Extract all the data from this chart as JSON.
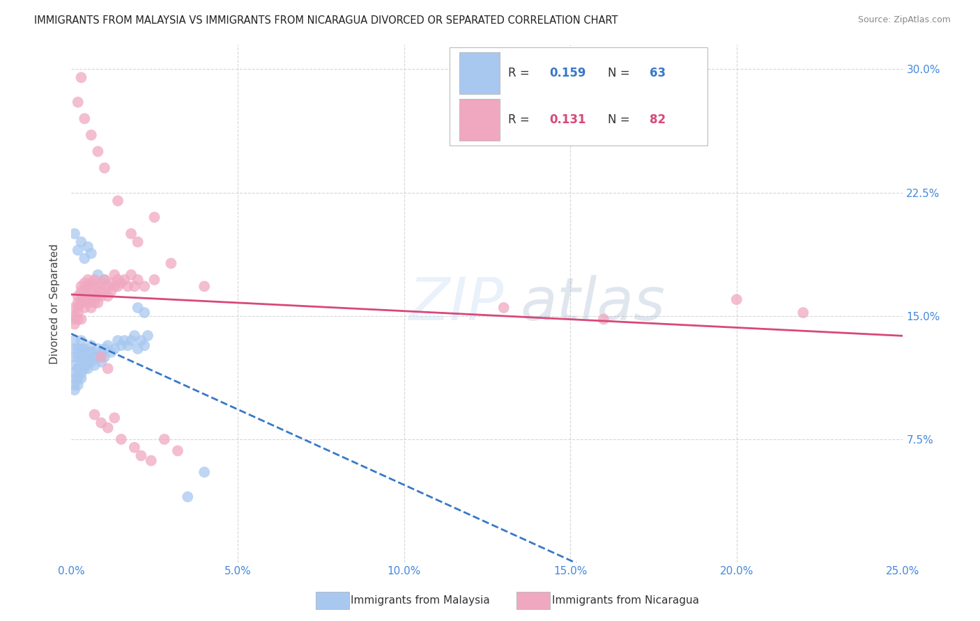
{
  "title": "IMMIGRANTS FROM MALAYSIA VS IMMIGRANTS FROM NICARAGUA DIVORCED OR SEPARATED CORRELATION CHART",
  "source": "Source: ZipAtlas.com",
  "xlim": [
    0.0,
    0.25
  ],
  "ylim": [
    0.0,
    0.315
  ],
  "ylabel": "Divorced or Separated",
  "malaysia_color": "#a8c8f0",
  "nicaragua_color": "#f0a8c0",
  "malaysia_line_color": "#3878c8",
  "nicaragua_line_color": "#d84878",
  "malaysia_R": 0.159,
  "malaysia_N": 63,
  "nicaragua_R": 0.131,
  "nicaragua_N": 82,
  "malaysia_x": [
    0.001,
    0.001,
    0.001,
    0.001,
    0.001,
    0.001,
    0.001,
    0.001,
    0.002,
    0.002,
    0.002,
    0.002,
    0.002,
    0.002,
    0.003,
    0.003,
    0.003,
    0.003,
    0.003,
    0.003,
    0.004,
    0.004,
    0.004,
    0.004,
    0.005,
    0.005,
    0.005,
    0.006,
    0.006,
    0.006,
    0.007,
    0.007,
    0.008,
    0.008,
    0.009,
    0.009,
    0.01,
    0.01,
    0.011,
    0.012,
    0.013,
    0.014,
    0.015,
    0.016,
    0.017,
    0.018,
    0.019,
    0.02,
    0.021,
    0.022,
    0.023,
    0.001,
    0.002,
    0.003,
    0.004,
    0.005,
    0.006,
    0.008,
    0.01,
    0.02,
    0.022,
    0.035,
    0.04
  ],
  "malaysia_y": [
    0.12,
    0.125,
    0.13,
    0.135,
    0.105,
    0.108,
    0.112,
    0.115,
    0.118,
    0.125,
    0.13,
    0.112,
    0.108,
    0.118,
    0.13,
    0.125,
    0.12,
    0.135,
    0.115,
    0.112,
    0.12,
    0.125,
    0.13,
    0.118,
    0.128,
    0.122,
    0.118,
    0.132,
    0.128,
    0.122,
    0.125,
    0.12,
    0.13,
    0.125,
    0.128,
    0.122,
    0.13,
    0.125,
    0.132,
    0.128,
    0.13,
    0.135,
    0.132,
    0.135,
    0.132,
    0.135,
    0.138,
    0.13,
    0.135,
    0.132,
    0.138,
    0.2,
    0.19,
    0.195,
    0.185,
    0.192,
    0.188,
    0.175,
    0.172,
    0.155,
    0.152,
    0.04,
    0.055
  ],
  "nicaragua_x": [
    0.001,
    0.001,
    0.001,
    0.001,
    0.002,
    0.002,
    0.002,
    0.002,
    0.002,
    0.003,
    0.003,
    0.003,
    0.003,
    0.003,
    0.004,
    0.004,
    0.004,
    0.004,
    0.005,
    0.005,
    0.005,
    0.005,
    0.006,
    0.006,
    0.006,
    0.006,
    0.007,
    0.007,
    0.007,
    0.007,
    0.008,
    0.008,
    0.008,
    0.009,
    0.009,
    0.009,
    0.01,
    0.01,
    0.011,
    0.011,
    0.012,
    0.012,
    0.013,
    0.013,
    0.014,
    0.014,
    0.015,
    0.016,
    0.017,
    0.018,
    0.019,
    0.02,
    0.022,
    0.025,
    0.002,
    0.003,
    0.004,
    0.006,
    0.008,
    0.01,
    0.014,
    0.018,
    0.02,
    0.025,
    0.03,
    0.04,
    0.007,
    0.009,
    0.011,
    0.013,
    0.015,
    0.019,
    0.021,
    0.024,
    0.028,
    0.032,
    0.009,
    0.011,
    0.13,
    0.16,
    0.2,
    0.22
  ],
  "nicaragua_y": [
    0.145,
    0.15,
    0.155,
    0.148,
    0.152,
    0.148,
    0.158,
    0.162,
    0.155,
    0.16,
    0.165,
    0.148,
    0.158,
    0.168,
    0.16,
    0.165,
    0.17,
    0.155,
    0.162,
    0.168,
    0.172,
    0.158,
    0.16,
    0.165,
    0.17,
    0.155,
    0.162,
    0.168,
    0.172,
    0.158,
    0.162,
    0.168,
    0.158,
    0.165,
    0.17,
    0.162,
    0.165,
    0.172,
    0.168,
    0.162,
    0.165,
    0.17,
    0.168,
    0.175,
    0.168,
    0.172,
    0.17,
    0.172,
    0.168,
    0.175,
    0.168,
    0.172,
    0.168,
    0.172,
    0.28,
    0.295,
    0.27,
    0.26,
    0.25,
    0.24,
    0.22,
    0.2,
    0.195,
    0.21,
    0.182,
    0.168,
    0.09,
    0.085,
    0.082,
    0.088,
    0.075,
    0.07,
    0.065,
    0.062,
    0.075,
    0.068,
    0.125,
    0.118,
    0.155,
    0.148,
    0.16,
    0.152
  ]
}
